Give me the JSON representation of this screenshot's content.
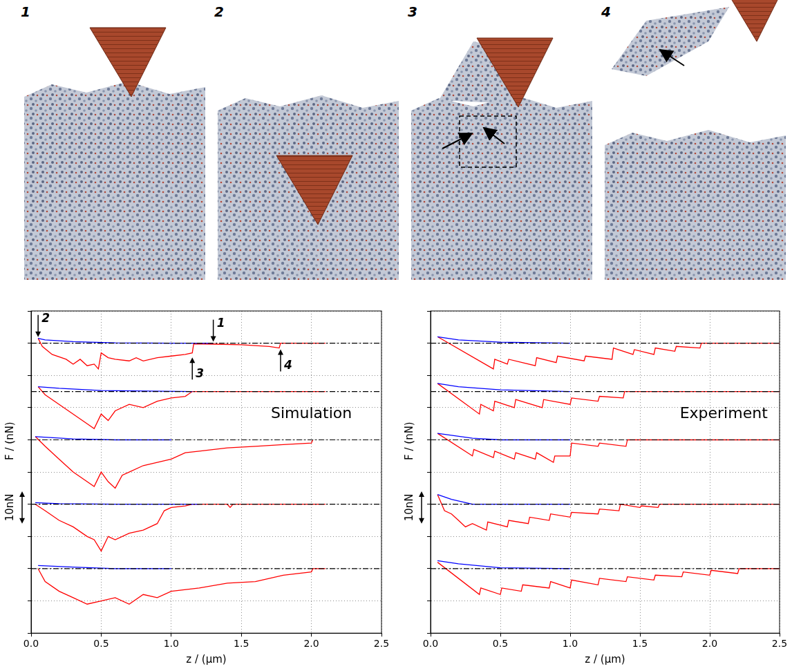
{
  "snapshots": {
    "labels": [
      "1",
      "2",
      "3",
      "4"
    ]
  },
  "chart_data": [
    {
      "type": "line",
      "x_label": "z / (μm)",
      "y_label": "F / (nN)",
      "xlim": [
        0,
        2.5
      ],
      "xticks": [
        {
          "value": 0,
          "label": "0.0"
        },
        0.5,
        {
          "value": 1,
          "label": "1.0"
        },
        1.5,
        {
          "value": 2,
          "label": "2.0"
        },
        2.5
      ],
      "ylim": [
        -90,
        10
      ],
      "yticks": [
        -90,
        -80,
        -70,
        -60,
        -50,
        -40,
        -30,
        -20,
        -10,
        0,
        10
      ],
      "grid": true,
      "tick_labels": "x",
      "scale_bar": {
        "label": "10nN",
        "from": -56,
        "to": -46
      },
      "annotations": [
        {
          "text": "1",
          "x": 1.3,
          "y": 0,
          "arrow": "down"
        },
        {
          "text": "2",
          "x": 0.05,
          "y": 1.5,
          "arrow": "down"
        },
        {
          "text": "3",
          "x": 1.15,
          "y": -4,
          "arrow": "up"
        },
        {
          "text": "4",
          "x": 1.78,
          "y": -1.5,
          "arrow": "up"
        },
        {
          "text": "Simulation",
          "x": 2.0,
          "y": -22
        }
      ],
      "series": [
        {
          "color": "#000000",
          "line_style": "dashdot",
          "x": [
            0,
            2.5
          ],
          "values": [
            0,
            0
          ]
        },
        {
          "color": "#000000",
          "line_style": "dashdot",
          "x": [
            0,
            2.5
          ],
          "values": [
            -15,
            -15
          ]
        },
        {
          "color": "#000000",
          "line_style": "dashdot",
          "x": [
            0,
            2.5
          ],
          "values": [
            -30,
            -30
          ]
        },
        {
          "color": "#000000",
          "line_style": "dashdot",
          "x": [
            0,
            2.5
          ],
          "values": [
            -50,
            -50
          ]
        },
        {
          "color": "#000000",
          "line_style": "dashdot",
          "x": [
            0,
            2.5
          ],
          "values": [
            -70,
            -70
          ]
        },
        {
          "color": "#0000ff",
          "x": [
            0.05,
            0.1,
            0.3,
            0.6,
            1.0,
            1.3
          ],
          "values": [
            1.5,
            1,
            0.5,
            0.1,
            0,
            0
          ]
        },
        {
          "color": "#ff0000",
          "x": [
            0.05,
            0.08,
            0.15,
            0.25,
            0.3,
            0.35,
            0.4,
            0.45,
            0.48,
            0.5,
            0.55,
            0.6,
            0.7,
            0.75,
            0.8,
            0.9,
            1.0,
            1.1,
            1.15,
            1.16,
            1.3,
            1.5,
            1.7,
            1.77,
            1.78,
            2.1
          ],
          "values": [
            1.5,
            -1,
            -3.5,
            -5,
            -6.5,
            -5,
            -7,
            -6.5,
            -8,
            -3,
            -4.5,
            -5,
            -5.5,
            -4.5,
            -5.5,
            -4.5,
            -4,
            -3.5,
            -3,
            -0.2,
            -0.3,
            -0.5,
            -1,
            -1.5,
            0,
            0
          ]
        },
        {
          "color": "#0000ff",
          "x": [
            0.05,
            0.2,
            0.5,
            1.15
          ],
          "values": [
            -13.5,
            -14,
            -14.7,
            -15
          ]
        },
        {
          "color": "#ff0000",
          "x": [
            0.05,
            0.1,
            0.2,
            0.3,
            0.4,
            0.45,
            0.5,
            0.55,
            0.6,
            0.7,
            0.8,
            0.9,
            1.0,
            1.1,
            1.15,
            2.1
          ],
          "values": [
            -13.5,
            -16,
            -19,
            -22,
            -25,
            -26.5,
            -22,
            -24,
            -21,
            -19,
            -20,
            -18,
            -17,
            -16.5,
            -15,
            -15
          ]
        },
        {
          "color": "#0000ff",
          "x": [
            0.03,
            0.3,
            0.6,
            1.0
          ],
          "values": [
            -29,
            -29.7,
            -30,
            -30
          ]
        },
        {
          "color": "#ff0000",
          "x": [
            0.03,
            0.1,
            0.2,
            0.3,
            0.4,
            0.45,
            0.5,
            0.55,
            0.6,
            0.65,
            0.7,
            0.8,
            0.9,
            1.0,
            1.1,
            1.2,
            1.4,
            1.6,
            1.8,
            2.0,
            2.01
          ],
          "values": [
            -29,
            -32,
            -36,
            -40,
            -43,
            -44.5,
            -40,
            -43,
            -45,
            -41,
            -40,
            -38,
            -37,
            -36,
            -34,
            -33.5,
            -32.5,
            -32,
            -31.5,
            -31,
            -30
          ]
        },
        {
          "color": "#0000ff",
          "x": [
            0.03,
            0.2,
            0.6,
            1.2
          ],
          "values": [
            -49.5,
            -49.8,
            -50,
            -50
          ]
        },
        {
          "color": "#ff0000",
          "x": [
            0.03,
            0.1,
            0.2,
            0.3,
            0.4,
            0.45,
            0.5,
            0.55,
            0.6,
            0.7,
            0.8,
            0.9,
            0.95,
            1.0,
            1.1,
            1.15,
            1.4,
            1.42,
            1.44,
            2.1
          ],
          "values": [
            -50,
            -52,
            -55,
            -57,
            -60,
            -61,
            -64.5,
            -60,
            -61,
            -59,
            -58,
            -56,
            -52,
            -51,
            -50.5,
            -50,
            -50,
            -51,
            -50,
            -50
          ]
        },
        {
          "color": "#0000ff",
          "x": [
            0.05,
            0.3,
            0.6,
            1.0
          ],
          "values": [
            -69,
            -69.5,
            -70,
            -70
          ]
        },
        {
          "color": "#ff0000",
          "x": [
            0.05,
            0.1,
            0.2,
            0.3,
            0.4,
            0.5,
            0.6,
            0.7,
            0.8,
            0.9,
            1.0,
            1.2,
            1.4,
            1.6,
            1.8,
            2.0,
            2.01,
            2.1
          ],
          "values": [
            -70,
            -74,
            -77,
            -79,
            -81,
            -80,
            -79,
            -81,
            -78,
            -79,
            -77,
            -76,
            -74.5,
            -74,
            -72,
            -71,
            -70,
            -70
          ]
        }
      ]
    },
    {
      "type": "line",
      "x_label": "z / (μm)",
      "y_label": "F / (nN)",
      "xlim": [
        0,
        2.5
      ],
      "xticks": [
        {
          "value": 0,
          "label": "0.0"
        },
        0.5,
        {
          "value": 1,
          "label": "1.0"
        },
        1.5,
        {
          "value": 2,
          "label": "2.0"
        },
        2.5
      ],
      "ylim": [
        -90,
        10
      ],
      "yticks": [
        -90,
        -80,
        -70,
        -60,
        -50,
        -40,
        -30,
        -20,
        -10,
        0,
        10
      ],
      "grid": true,
      "tick_labels": "x",
      "scale_bar": {
        "label": "10nN",
        "from": -56,
        "to": -46
      },
      "annotations": [
        {
          "text": "Experiment",
          "x": 2.1,
          "y": -22
        }
      ],
      "series": [
        {
          "color": "#000000",
          "line_style": "dashdot",
          "x": [
            0,
            2.5
          ],
          "values": [
            0,
            0
          ]
        },
        {
          "color": "#000000",
          "line_style": "dashdot",
          "x": [
            0,
            2.5
          ],
          "values": [
            -15,
            -15
          ]
        },
        {
          "color": "#000000",
          "line_style": "dashdot",
          "x": [
            0,
            2.5
          ],
          "values": [
            -30,
            -30
          ]
        },
        {
          "color": "#000000",
          "line_style": "dashdot",
          "x": [
            0,
            2.5
          ],
          "values": [
            -50,
            -50
          ]
        },
        {
          "color": "#000000",
          "line_style": "dashdot",
          "x": [
            0,
            2.5
          ],
          "values": [
            -70,
            -70
          ]
        },
        {
          "color": "#0000ff",
          "x": [
            0.05,
            0.2,
            0.5,
            1.0
          ],
          "values": [
            2,
            1,
            0.3,
            0
          ]
        },
        {
          "color": "#ff0000",
          "x": [
            0.05,
            0.45,
            0.46,
            0.55,
            0.56,
            0.75,
            0.76,
            0.9,
            0.91,
            1.1,
            1.11,
            1.3,
            1.31,
            1.45,
            1.46,
            1.6,
            1.61,
            1.75,
            1.76,
            1.93,
            1.94,
            2.5
          ],
          "values": [
            2,
            -8,
            -5,
            -6.5,
            -5,
            -7,
            -4.5,
            -6,
            -4,
            -5.5,
            -4,
            -5,
            -1.5,
            -3.5,
            -2,
            -3.5,
            -1.5,
            -2.5,
            -1,
            -1.5,
            0,
            0
          ]
        },
        {
          "color": "#0000ff",
          "x": [
            0.05,
            0.2,
            0.5,
            1.0
          ],
          "values": [
            -12.5,
            -13.5,
            -14.5,
            -15
          ]
        },
        {
          "color": "#ff0000",
          "x": [
            0.05,
            0.35,
            0.36,
            0.45,
            0.46,
            0.6,
            0.61,
            0.8,
            0.81,
            1.0,
            1.01,
            1.2,
            1.21,
            1.38,
            1.39,
            2.5
          ],
          "values": [
            -12.5,
            -22,
            -19,
            -21,
            -18,
            -20,
            -17.5,
            -20,
            -17.5,
            -19,
            -17,
            -18,
            -16.5,
            -17,
            -15,
            -15
          ]
        },
        {
          "color": "#0000ff",
          "x": [
            0.05,
            0.3,
            0.5,
            1.0
          ],
          "values": [
            -28,
            -29.5,
            -30,
            -30
          ]
        },
        {
          "color": "#ff0000",
          "x": [
            0.05,
            0.3,
            0.31,
            0.45,
            0.46,
            0.6,
            0.61,
            0.75,
            0.76,
            0.88,
            0.89,
            1.0,
            1.01,
            1.2,
            1.21,
            1.4,
            1.41,
            2.5
          ],
          "values": [
            -28,
            -35,
            -33,
            -35.5,
            -33.5,
            -36,
            -34,
            -36,
            -34,
            -37,
            -35,
            -35,
            -31,
            -32,
            -31,
            -32,
            -30,
            -30
          ]
        },
        {
          "color": "#0000ff",
          "x": [
            0.05,
            0.15,
            0.3,
            1.0
          ],
          "values": [
            -47,
            -48.5,
            -50,
            -50
          ]
        },
        {
          "color": "#ff0000",
          "x": [
            0.05,
            0.1,
            0.15,
            0.2,
            0.25,
            0.3,
            0.4,
            0.41,
            0.55,
            0.56,
            0.7,
            0.71,
            0.85,
            0.86,
            1.0,
            1.01,
            1.2,
            1.21,
            1.35,
            1.36,
            1.5,
            1.51,
            1.63,
            1.64,
            2.5
          ],
          "values": [
            -47,
            -52,
            -53,
            -55,
            -57,
            -56,
            -58,
            -55.5,
            -57,
            -55,
            -56,
            -54,
            -55,
            -53,
            -54,
            -52.5,
            -53,
            -51.5,
            -52,
            -50,
            -51,
            -50.5,
            -51,
            -50,
            -50
          ]
        },
        {
          "color": "#0000ff",
          "x": [
            0.05,
            0.2,
            0.5,
            1.0
          ],
          "values": [
            -67.5,
            -68.5,
            -69.7,
            -70
          ]
        },
        {
          "color": "#ff0000",
          "x": [
            0.05,
            0.35,
            0.36,
            0.5,
            0.51,
            0.65,
            0.66,
            0.85,
            0.86,
            1.0,
            1.01,
            1.2,
            1.21,
            1.4,
            1.41,
            1.6,
            1.61,
            1.8,
            1.81,
            2.0,
            2.01,
            2.2,
            2.21,
            2.5
          ],
          "values": [
            -68,
            -78,
            -76,
            -78,
            -76,
            -77,
            -75,
            -76,
            -74,
            -76,
            -73.5,
            -75,
            -73,
            -74,
            -72.5,
            -73.5,
            -72,
            -72.5,
            -71,
            -72,
            -70.5,
            -71.5,
            -70,
            -70
          ]
        }
      ]
    }
  ]
}
